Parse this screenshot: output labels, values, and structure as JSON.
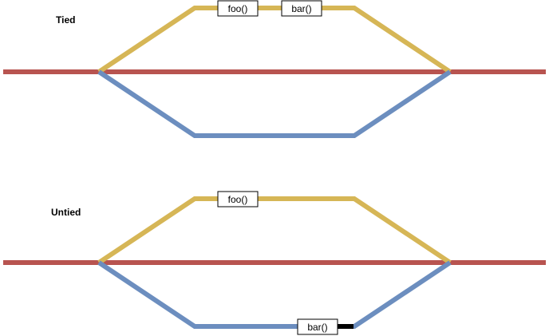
{
  "colors": {
    "main_thread": "#b85450",
    "upper_branch": "#d6b656",
    "lower_branch": "#6c8ebf",
    "block_marker": "#000000"
  },
  "tied": {
    "label": "Tied",
    "upper_calls": [
      "foo()",
      "bar()"
    ],
    "lower_calls": []
  },
  "untied": {
    "label": "Untied",
    "upper_calls": [
      "foo()"
    ],
    "lower_calls": [
      "bar()"
    ]
  }
}
